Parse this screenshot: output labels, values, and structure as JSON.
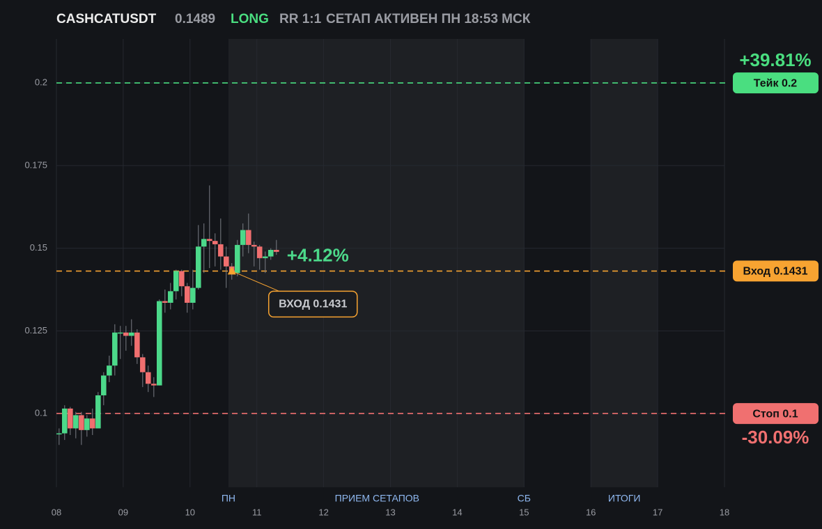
{
  "chart_data": {
    "type": "candlestick",
    "title": "CASHCATUSDT",
    "header": {
      "price": "0.1489",
      "side": "LONG",
      "rr": "RR 1:1",
      "status": "СЕТАП АКТИВЕН ПН 18:53 МСК"
    },
    "xlim": [
      8,
      18
    ],
    "ylim": [
      0.0777,
      0.2133
    ],
    "xticks": [
      {
        "value": 8,
        "label": "08"
      },
      {
        "value": 9,
        "label": "09"
      },
      {
        "value": 10,
        "label": "10"
      },
      {
        "value": 11,
        "label": "11"
      },
      {
        "value": 12,
        "label": "12"
      },
      {
        "value": 13,
        "label": "13"
      },
      {
        "value": 14,
        "label": "14"
      },
      {
        "value": 15,
        "label": "15"
      },
      {
        "value": 16,
        "label": "16"
      },
      {
        "value": 17,
        "label": "17"
      },
      {
        "value": 18,
        "label": "18"
      }
    ],
    "yticks": [
      0.1,
      0.125,
      0.15,
      0.175,
      0.2
    ],
    "grid": true,
    "up_color": "#4cd98a",
    "down_color": "#f06f6f",
    "x": [
      8.04,
      8.123,
      8.207,
      8.29,
      8.374,
      8.457,
      8.54,
      8.624,
      8.707,
      8.791,
      8.874,
      8.957,
      9.041,
      9.124,
      9.208,
      9.291,
      9.374,
      9.458,
      9.541,
      9.625,
      9.708,
      9.791,
      9.875,
      9.958,
      10.042,
      10.125,
      10.208,
      10.292,
      10.375,
      10.459,
      10.542,
      10.625,
      10.709,
      10.792,
      10.876,
      10.959,
      11.042,
      11.126,
      11.209,
      11.293
    ],
    "open": [
      0.094,
      0.094,
      0.1015,
      0.0955,
      0.0995,
      0.095,
      0.0985,
      0.0955,
      0.1055,
      0.1115,
      0.1145,
      0.1245,
      0.1245,
      0.1235,
      0.1245,
      0.117,
      0.1125,
      0.109,
      0.1085,
      0.134,
      0.1335,
      0.137,
      0.1431,
      0.1385,
      0.1335,
      0.138,
      0.1505,
      0.1528,
      0.1522,
      0.1512,
      0.1475,
      0.1445,
      0.1425,
      0.151,
      0.1555,
      0.151,
      0.1505,
      0.147,
      0.1475,
      0.1495
    ],
    "high": [
      0.0955,
      0.1025,
      0.102,
      0.1005,
      0.1005,
      0.0995,
      0.1015,
      0.1065,
      0.1125,
      0.1175,
      0.127,
      0.1265,
      0.1265,
      0.1285,
      0.1255,
      0.118,
      0.1145,
      0.111,
      0.1345,
      0.1375,
      0.1395,
      0.1435,
      0.1435,
      0.1395,
      0.1435,
      0.157,
      0.1575,
      0.169,
      0.1545,
      0.159,
      0.1505,
      0.1455,
      0.1525,
      0.1575,
      0.1605,
      0.152,
      0.151,
      0.149,
      0.15,
      0.1525
    ],
    "low": [
      0.0905,
      0.092,
      0.0935,
      0.0925,
      0.0905,
      0.093,
      0.0935,
      0.0955,
      0.1025,
      0.1095,
      0.1115,
      0.1165,
      0.119,
      0.1205,
      0.115,
      0.108,
      0.1065,
      0.105,
      0.1085,
      0.1305,
      0.1315,
      0.1345,
      0.1355,
      0.1305,
      0.1315,
      0.1375,
      0.1425,
      0.144,
      0.1445,
      0.1435,
      0.138,
      0.1405,
      0.1415,
      0.1475,
      0.1485,
      0.1445,
      0.1435,
      0.1425,
      0.1465,
      0.148
    ],
    "close": [
      0.094,
      0.1015,
      0.0955,
      0.0995,
      0.095,
      0.0985,
      0.0955,
      0.1055,
      0.1115,
      0.1145,
      0.1245,
      0.1245,
      0.1235,
      0.1245,
      0.117,
      0.1125,
      0.109,
      0.1085,
      0.134,
      0.1335,
      0.137,
      0.1431,
      0.1385,
      0.1335,
      0.138,
      0.1505,
      0.1528,
      0.1522,
      0.1512,
      0.1475,
      0.1445,
      0.1425,
      0.151,
      0.1555,
      0.151,
      0.1505,
      0.147,
      0.1475,
      0.1495,
      0.1489
    ],
    "zones": [
      {
        "x": [
          10.575,
          15
        ]
      },
      {
        "x": [
          16,
          17
        ]
      }
    ],
    "markers": [
      {
        "label": "ПН",
        "x": 10.575
      },
      {
        "label": "ПРИЕМ СЕТАПОВ",
        "x": 12.8
      },
      {
        "label": "СБ",
        "x": 15
      },
      {
        "label": "ИТОГИ",
        "x": 16.5
      }
    ],
    "levels": [
      {
        "value": 0.2,
        "label": "Тейк 0.2",
        "color": "#4ade80",
        "change": "+39.81%"
      },
      {
        "value": 0.1431,
        "label": "Вход 0.1431",
        "color": "#f7a331"
      },
      {
        "value": 0.1,
        "label": "Стоп 0.1",
        "color": "#f07070",
        "change": "-30.09%"
      }
    ],
    "annotation": {
      "text": "ВХОД 0.1431",
      "x": 10.625,
      "y": 0.1431,
      "color": "#f7a331"
    },
    "current_change": "+4.12%"
  }
}
